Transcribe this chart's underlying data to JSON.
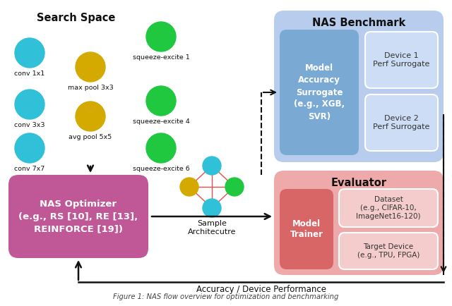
{
  "search_space_title": "Search Space",
  "nas_benchmark_title": "NAS Benchmark",
  "evaluator_title": "Evaluator",
  "nas_optimizer_text": "NAS Optimizer\n(e.g., RS [10], RE [13],\nREINFORCE [19])",
  "model_accuracy_text": "Model\nAccuracy\nSurrogate\n(e.g., XGB,\nSVR)",
  "device1_text": "Device 1\nPerf Surrogate",
  "device2_text": "Device 2\nPerf Surrogate",
  "model_trainer_text": "Model\nTrainer",
  "dataset_text": "Dataset\n(e.g., CIFAR-10,\nImageNet16-120)",
  "target_device_text": "Target Device\n(e.g., TPU, FPGA)",
  "sample_arch_text": "Sample\nArchitecutre",
  "accuracy_text": "Accuracy / Device Performance",
  "caption_text": "Figure 1: NAS flow",
  "blue_bg": "#b8ccee",
  "blue_box": "#7aaad4",
  "blue_inner": "#ccddf5",
  "red_bg": "#eeaaaa",
  "red_box": "#d96666",
  "red_inner": "#f5cccc",
  "purple_box": "#c05898",
  "cyan_circle": "#30c0d8",
  "yellow_circle": "#d4aa00",
  "green_circle": "#20c840",
  "bg_color": "#ffffff",
  "arrow_color": "#111111"
}
